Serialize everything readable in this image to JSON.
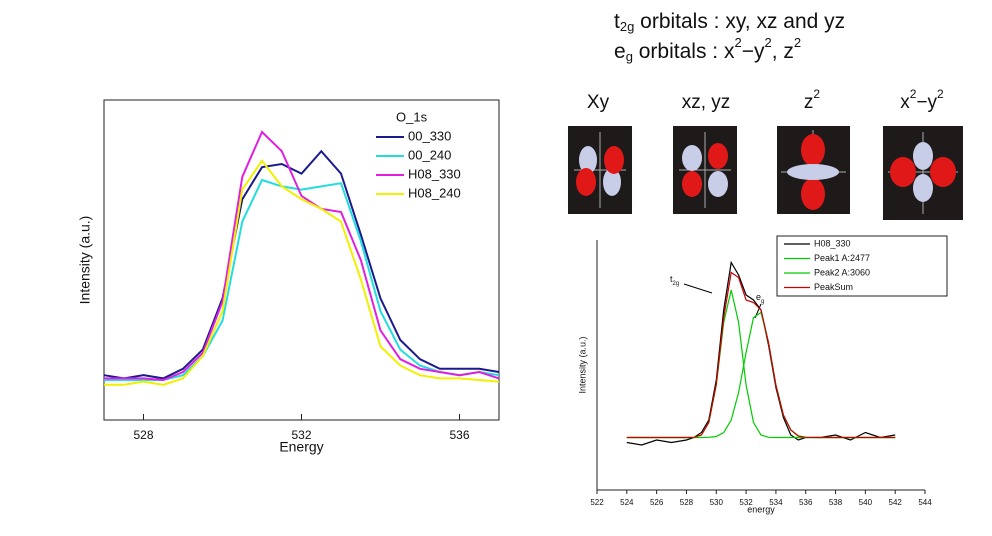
{
  "header": {
    "line1": [
      "t",
      "2g",
      " orbitals  : xy, xz and  yz"
    ],
    "line2": [
      "e",
      "g",
      " orbitals  : x",
      "2",
      "−y",
      "2",
      ",  z",
      "2"
    ]
  },
  "orbitals": {
    "xy": "Xy",
    "xzyz": "xz, yz",
    "z2": [
      "z",
      "2"
    ],
    "x2y2": [
      "x",
      "2",
      "−y",
      "2"
    ]
  },
  "chart_data": [
    {
      "type": "line",
      "xlabel": "Energy",
      "ylabel": "Intensity (a.u.)",
      "legend_title": "O_1s",
      "x": [
        527,
        527.5,
        528,
        528.5,
        529,
        529.5,
        530,
        530.5,
        531,
        531.5,
        532,
        532.5,
        533,
        533.5,
        534,
        534.5,
        535,
        535.5,
        536,
        536.5,
        537
      ],
      "xlim": [
        527,
        537
      ],
      "xticks": [
        528,
        532,
        536
      ],
      "ylim": [
        0,
        100
      ],
      "series": [
        {
          "name": "00_330",
          "color": "#1a1a8c",
          "values": [
            14,
            13,
            14,
            13,
            16,
            22,
            38,
            69,
            79,
            80,
            77,
            84,
            77,
            58,
            38,
            25,
            19,
            16,
            16,
            16,
            15
          ]
        },
        {
          "name": "00_240",
          "color": "#22dddd",
          "values": [
            12.5,
            12.5,
            12.5,
            12.5,
            14,
            20,
            31,
            62,
            75,
            73,
            72,
            73,
            74,
            56,
            34,
            22,
            17,
            15,
            14,
            15,
            14
          ]
        },
        {
          "name": "H08_330",
          "color": "#e020e0",
          "values": [
            13,
            13,
            13,
            12.5,
            15,
            21,
            37,
            76,
            90,
            84,
            70,
            66,
            65,
            50,
            28,
            19,
            16,
            15,
            14,
            15,
            13
          ]
        },
        {
          "name": "H08_240",
          "color": "#f0f000",
          "values": [
            11,
            11,
            12,
            11,
            13,
            20,
            34,
            72,
            81,
            73,
            69,
            66,
            62,
            44,
            23,
            17,
            14,
            13,
            13,
            12.5,
            12
          ]
        }
      ]
    },
    {
      "type": "line",
      "xlabel": "energy",
      "ylabel": "Intensity (a.u.)",
      "x": [
        524,
        525,
        526,
        527,
        528,
        528.5,
        529,
        529.5,
        530,
        530.5,
        531,
        531.5,
        532,
        532.5,
        533,
        533.5,
        534,
        534.5,
        535,
        535.5,
        536,
        537,
        538,
        539,
        540,
        541,
        542
      ],
      "xlim": [
        522,
        544
      ],
      "xticks": [
        522,
        524,
        526,
        528,
        530,
        532,
        534,
        536,
        538,
        540,
        542,
        544
      ],
      "ylim": [
        0,
        100
      ],
      "annotations": [
        {
          "text": "t",
          "sub": "2g"
        },
        {
          "text": "e",
          "sub": "g"
        }
      ],
      "series": [
        {
          "name": "H08_330",
          "color": "#000000",
          "values": [
            19,
            18,
            20,
            19,
            20,
            21,
            23,
            28,
            44,
            72,
            91,
            86,
            78,
            76,
            72,
            58,
            41,
            29,
            22,
            20,
            21,
            21,
            22,
            20,
            23,
            21,
            22
          ]
        },
        {
          "name": "Peak1 A:2477",
          "color": "#00cc00",
          "values": [
            21,
            21,
            21,
            21,
            21,
            21.1,
            22,
            27,
            42,
            67,
            80,
            67,
            42,
            27,
            22,
            21.1,
            21,
            21,
            21,
            21,
            21,
            21,
            21,
            21,
            21,
            21,
            21
          ]
        },
        {
          "name": "Peak2 A:3060",
          "color": "#00cc00",
          "values": [
            21,
            21,
            21,
            21,
            21,
            21,
            21,
            21.1,
            21.4,
            23,
            28,
            39,
            55,
            69,
            71,
            59,
            42,
            30,
            24,
            21.6,
            21.1,
            21,
            21,
            21,
            21,
            21,
            21
          ]
        },
        {
          "name": "PeakSum",
          "color": "#cc0000",
          "values": [
            21,
            21,
            21,
            21,
            21,
            21.1,
            22,
            27,
            42.4,
            69,
            87,
            85,
            76,
            75,
            72,
            59,
            42,
            30,
            24,
            21.6,
            21.1,
            21,
            21,
            21,
            21,
            21,
            21
          ]
        }
      ]
    }
  ]
}
